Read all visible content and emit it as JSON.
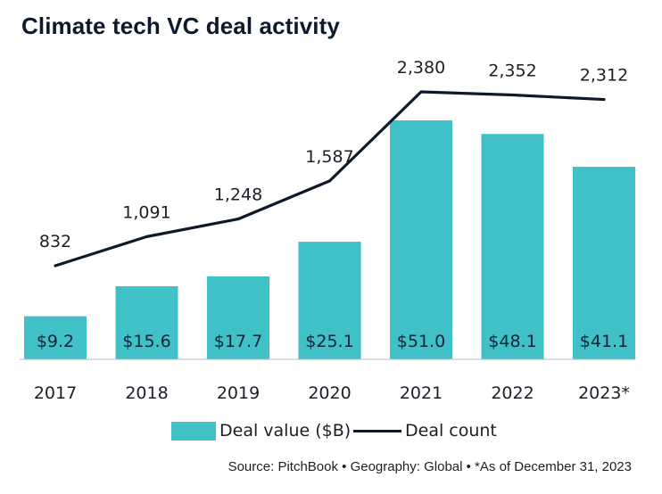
{
  "chart_data": {
    "type": "bar",
    "title": "Climate tech VC deal activity",
    "categories": [
      "2017",
      "2018",
      "2019",
      "2020",
      "2021",
      "2022",
      "2023*"
    ],
    "series": [
      {
        "name": "Deal value ($B)",
        "type": "bar",
        "values": [
          9.2,
          15.6,
          17.7,
          25.1,
          51.0,
          48.1,
          41.1
        ],
        "labels": [
          "$9.2",
          "$15.6",
          "$17.7",
          "$25.1",
          "$51.0",
          "$48.1",
          "$41.1"
        ],
        "color": "#40c1c8"
      },
      {
        "name": "Deal count",
        "type": "line",
        "values": [
          832,
          1091,
          1248,
          1587,
          2380,
          2352,
          2312
        ],
        "labels": [
          "832",
          "1,091",
          "1,248",
          "1,587",
          "2,380",
          "2,352",
          "2,312"
        ],
        "color": "#0e1a2b"
      }
    ],
    "grid": false,
    "legend_position": "bottom"
  },
  "source": "Source: PitchBook  •  Geography: Global  •  *As of December 31, 2023"
}
